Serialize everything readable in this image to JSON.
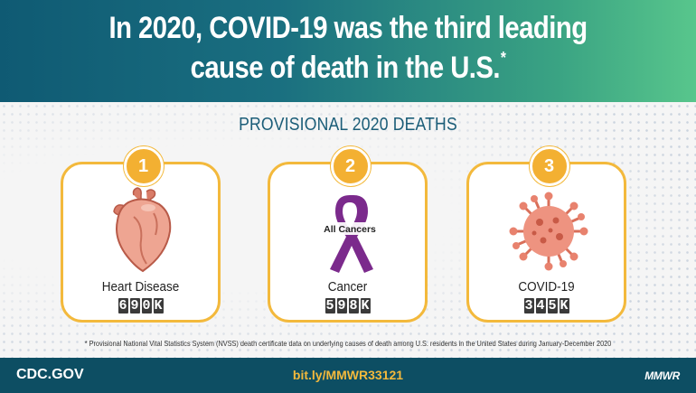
{
  "header": {
    "title_line1": "In 2020, COVID-19 was the third leading",
    "title_line2": "cause of death in the U.S.",
    "title_asterisk": "*"
  },
  "subtitle": "PROVISIONAL 2020 DEATHS",
  "cards": [
    {
      "rank": "1",
      "label": "Heart Disease",
      "value": "690K",
      "icon": "heart-organ-icon"
    },
    {
      "rank": "2",
      "label": "Cancer",
      "value": "598K",
      "icon": "cancer-ribbon-icon",
      "ribbon_text": "All Cancers"
    },
    {
      "rank": "3",
      "label": "COVID-19",
      "value": "345K",
      "icon": "coronavirus-icon"
    }
  ],
  "footnote": "* Provisional National Vital Statistics System (NVSS) death certificate data on underlying causes of death among U.S. residents in the United States during January-December 2020",
  "footer": {
    "left": "CDC.GOV",
    "center": "bit.ly/MMWR33121",
    "right": "MMWR"
  },
  "colors": {
    "header_start": "#0f5a73",
    "header_end": "#58c68c",
    "accent": "#f3b93c",
    "footer_bg": "#0d4e63",
    "ribbon": "#7b2a8c",
    "virus": "#e8826e",
    "heart": "#e89a86"
  }
}
